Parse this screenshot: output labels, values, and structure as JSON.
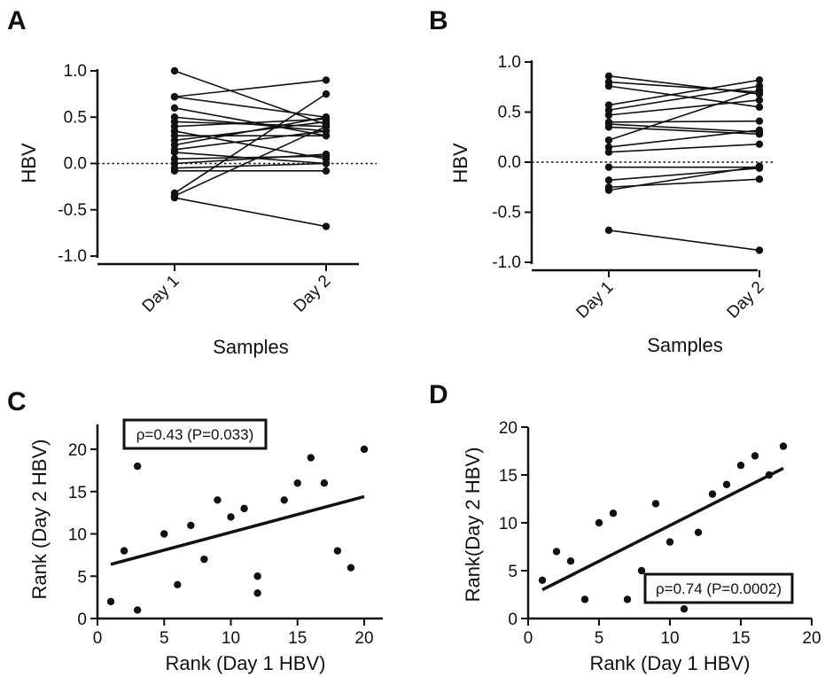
{
  "chart_data": [
    {
      "panel": "A",
      "type": "line",
      "ylabel": "HBV",
      "xlabel": "Samples",
      "categories": [
        "Day 1",
        "Day 2"
      ],
      "ylim": [
        -1.0,
        1.0
      ],
      "yticks": [
        -1.0,
        -0.5,
        0.0,
        0.5,
        1.0
      ],
      "ytick_labels": [
        "-1.0",
        "-0.5",
        "0.0",
        "0.5",
        "1.0"
      ],
      "reference_line": 0,
      "pairs": [
        [
          1.0,
          0.42
        ],
        [
          0.72,
          0.9
        ],
        [
          0.72,
          0.5
        ],
        [
          0.6,
          0.3
        ],
        [
          0.5,
          0.35
        ],
        [
          0.45,
          0.4
        ],
        [
          0.4,
          0.48
        ],
        [
          0.35,
          0.05
        ],
        [
          0.3,
          0.3
        ],
        [
          0.25,
          0.45
        ],
        [
          0.2,
          0.5
        ],
        [
          0.15,
          0.35
        ],
        [
          0.12,
          0.0
        ],
        [
          0.05,
          0.08
        ],
        [
          0.0,
          0.1
        ],
        [
          -0.05,
          0.0
        ],
        [
          -0.08,
          -0.08
        ],
        [
          -0.32,
          0.75
        ],
        [
          -0.35,
          0.4
        ],
        [
          -0.37,
          -0.68
        ]
      ]
    },
    {
      "panel": "B",
      "type": "line",
      "ylabel": "HBV",
      "xlabel": "Samples",
      "categories": [
        "Day 1",
        "Day 2"
      ],
      "ylim": [
        -1.0,
        1.0
      ],
      "yticks": [
        -1.0,
        -0.5,
        0.0,
        0.5,
        1.0
      ],
      "ytick_labels": [
        "-1.0",
        "-0.5",
        "0.0",
        "0.5",
        "1.0"
      ],
      "reference_line": 0,
      "pairs": [
        [
          0.86,
          0.68
        ],
        [
          0.8,
          0.7
        ],
        [
          0.76,
          0.55
        ],
        [
          0.57,
          0.82
        ],
        [
          0.52,
          0.76
        ],
        [
          0.47,
          0.62
        ],
        [
          0.4,
          0.41
        ],
        [
          0.38,
          0.3
        ],
        [
          0.35,
          0.28
        ],
        [
          0.22,
          0.72
        ],
        [
          0.15,
          0.32
        ],
        [
          0.1,
          0.18
        ],
        [
          -0.05,
          -0.05
        ],
        [
          -0.18,
          -0.06
        ],
        [
          -0.25,
          -0.17
        ],
        [
          -0.28,
          -0.04
        ],
        [
          -0.68,
          -0.88
        ]
      ]
    },
    {
      "panel": "C",
      "type": "scatter",
      "xlabel": "Rank (Day 1 HBV)",
      "ylabel": "Rank (Day 2 HBV)",
      "xlim": [
        0,
        22
      ],
      "ylim": [
        0,
        22
      ],
      "xticks": [
        0,
        5,
        10,
        15,
        20
      ],
      "yticks": [
        0,
        5,
        10,
        15,
        20
      ],
      "points": [
        [
          1,
          2
        ],
        [
          2,
          8
        ],
        [
          3,
          18
        ],
        [
          3,
          1
        ],
        [
          5,
          10
        ],
        [
          6,
          4
        ],
        [
          7,
          11
        ],
        [
          8,
          7
        ],
        [
          9,
          14
        ],
        [
          10,
          12
        ],
        [
          11,
          13
        ],
        [
          12,
          5
        ],
        [
          12,
          3
        ],
        [
          14,
          14
        ],
        [
          15,
          16
        ],
        [
          16,
          19
        ],
        [
          17,
          16
        ],
        [
          18,
          8
        ],
        [
          19,
          6
        ],
        [
          20,
          20
        ]
      ],
      "fit_line": [
        [
          1,
          6.4
        ],
        [
          20,
          14.4
        ]
      ],
      "annotation": "ρ=0.43 (P=0.033)",
      "annotation_position": "top-left"
    },
    {
      "panel": "D",
      "type": "scatter",
      "xlabel": "Rank (Day 1 HBV)",
      "ylabel": "Rank(Day 2 HBV)",
      "xlim": [
        0,
        20
      ],
      "ylim": [
        0,
        20
      ],
      "xticks": [
        0,
        5,
        10,
        15,
        20
      ],
      "yticks": [
        0,
        5,
        10,
        15,
        20
      ],
      "points": [
        [
          1,
          4
        ],
        [
          2,
          7
        ],
        [
          3,
          6
        ],
        [
          4,
          2
        ],
        [
          5,
          10
        ],
        [
          6,
          11
        ],
        [
          7,
          2
        ],
        [
          8,
          5
        ],
        [
          9,
          12
        ],
        [
          10,
          8
        ],
        [
          11,
          1
        ],
        [
          12,
          9
        ],
        [
          13,
          13
        ],
        [
          14,
          14
        ],
        [
          15,
          16
        ],
        [
          16,
          17
        ],
        [
          17,
          15
        ],
        [
          18,
          18
        ]
      ],
      "fit_line": [
        [
          1,
          3.0
        ],
        [
          18,
          15.7
        ]
      ],
      "annotation": "ρ=0.74 (P=0.0002)",
      "annotation_position": "bottom-right"
    }
  ]
}
